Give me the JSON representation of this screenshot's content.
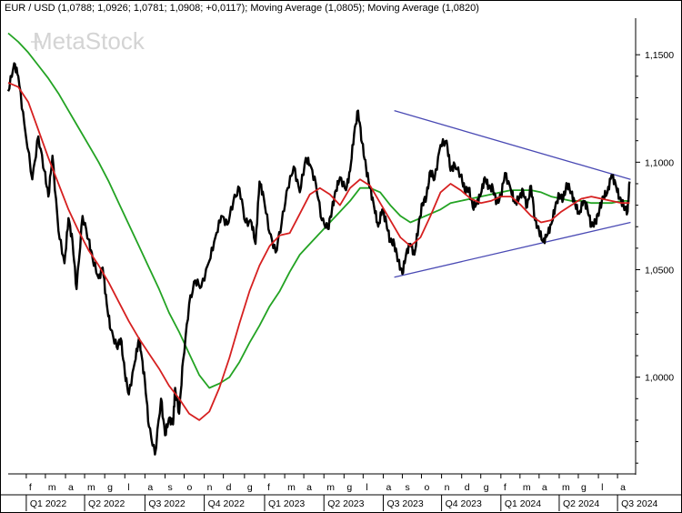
{
  "header": {
    "title": "EUR / USD (1,0788; 1,0926; 1,0781; 1,0908; +0,0117); Moving Average (1,0805); Moving Average (1,0820)"
  },
  "watermark": {
    "text": "MetaStock"
  },
  "colors": {
    "price": "#000000",
    "ma_fast": "#d62020",
    "ma_slow": "#23a323",
    "trendline": "#4a4ab4",
    "background": "#ffffff"
  },
  "chart_data": {
    "type": "line",
    "title": "EUR / USD (1,0788; 1,0926; 1,0781; 1,0908; +0,0117); Moving Average (1,0805); Moving Average (1,0820)",
    "ylim": [
      0.955,
      1.167
    ],
    "y_ticks": [
      "1,1500",
      "1,1000",
      "1,0500",
      "1,0000"
    ],
    "y_tick_values": [
      1.15,
      1.1,
      1.05,
      1.0
    ],
    "x_ticks": [
      {
        "label": "f",
        "t": 0.9
      },
      {
        "label": "m",
        "t": 1.85
      },
      {
        "label": "a",
        "t": 2.85
      },
      {
        "label": "m",
        "t": 3.8
      },
      {
        "label": "g",
        "t": 4.8
      },
      {
        "label": "l",
        "t": 5.8
      },
      {
        "label": "a",
        "t": 6.8
      },
      {
        "label": "s",
        "t": 7.8
      },
      {
        "label": "o",
        "t": 8.75
      },
      {
        "label": "n",
        "t": 9.75
      },
      {
        "label": "d",
        "t": 10.7
      },
      {
        "label": "g",
        "t": 11.75
      },
      {
        "label": "f",
        "t": 12.75
      },
      {
        "label": "m",
        "t": 13.75
      },
      {
        "label": "a",
        "t": 14.7
      },
      {
        "label": "m",
        "t": 15.7
      },
      {
        "label": "g",
        "t": 16.7
      },
      {
        "label": "l",
        "t": 17.65
      },
      {
        "label": "a",
        "t": 18.65
      },
      {
        "label": "s",
        "t": 19.6
      },
      {
        "label": "o",
        "t": 20.55
      },
      {
        "label": "n",
        "t": 21.55
      },
      {
        "label": "d",
        "t": 22.55
      },
      {
        "label": "g",
        "t": 23.5
      },
      {
        "label": "f",
        "t": 24.5
      },
      {
        "label": "m",
        "t": 25.45
      },
      {
        "label": "a",
        "t": 26.4
      },
      {
        "label": "m",
        "t": 27.4
      },
      {
        "label": "g",
        "t": 28.35
      },
      {
        "label": "l",
        "t": 29.35
      },
      {
        "label": "a",
        "t": 30.3
      }
    ],
    "quarters": [
      {
        "label": "Q1 2022",
        "t": 0.9
      },
      {
        "label": "Q2 2022",
        "t": 3.8
      },
      {
        "label": "Q3 2022",
        "t": 6.8
      },
      {
        "label": "Q4 2022",
        "t": 9.75
      },
      {
        "label": "Q1 2023",
        "t": 12.75
      },
      {
        "label": "Q2 2023",
        "t": 15.7
      },
      {
        "label": "Q3 2023",
        "t": 18.65
      },
      {
        "label": "Q4 2023",
        "t": 21.55
      },
      {
        "label": "Q1 2024",
        "t": 24.5
      },
      {
        "label": "Q2 2024",
        "t": 27.4
      },
      {
        "label": "Q3 2024",
        "t": 30.3
      }
    ],
    "x_range": [
      0,
      31.2
    ],
    "series": [
      {
        "key": "price",
        "x": [
          0,
          0.3,
          0.5,
          0.8,
          1.2,
          1.5,
          1.8,
          2.0,
          2.2,
          2.5,
          2.8,
          3.0,
          3.2,
          3.4,
          3.7,
          4.0,
          4.2,
          4.5,
          4.7,
          4.9,
          5.1,
          5.4,
          5.6,
          5.8,
          6.0,
          6.3,
          6.5,
          6.6,
          6.8,
          7.0,
          7.3,
          7.6,
          7.8,
          8.0,
          8.2,
          8.3,
          8.5,
          8.7,
          9.0,
          9.3,
          9.6,
          10.0,
          10.3,
          10.6,
          10.9,
          11.2,
          11.5,
          11.8,
          12.1,
          12.3,
          12.5,
          12.7,
          13.0,
          13.3,
          13.6,
          13.9,
          14.2,
          14.5,
          14.8,
          15.0,
          15.3,
          15.6,
          15.9,
          16.1,
          16.3,
          16.5,
          16.8,
          17.0,
          17.2,
          17.4,
          17.6,
          17.8,
          18.0,
          18.2,
          18.4,
          18.6,
          18.8,
          19.0,
          19.2,
          19.4,
          19.6,
          19.8,
          20.0,
          20.2,
          20.4,
          20.6,
          20.8,
          21.0,
          21.2,
          21.5,
          21.8,
          22.0,
          22.2,
          22.5,
          22.7,
          22.9,
          23.1,
          23.3,
          23.5,
          23.7,
          23.9,
          24.1,
          24.3,
          24.5,
          24.7,
          25.0,
          25.2,
          25.4,
          25.6,
          25.8,
          26.0,
          26.2,
          26.4,
          26.6,
          26.8,
          27.0,
          27.2,
          27.4,
          27.6,
          27.8,
          28.0,
          28.2,
          28.4,
          28.6,
          28.8,
          29.0,
          29.2,
          29.4,
          29.6,
          29.8,
          30.0,
          30.2,
          30.4,
          30.6,
          30.8,
          30.9
        ],
        "values": [
          1.133,
          1.146,
          1.14,
          1.118,
          1.092,
          1.112,
          1.096,
          1.084,
          1.103,
          1.068,
          1.053,
          1.074,
          1.063,
          1.041,
          1.075,
          1.064,
          1.055,
          1.046,
          1.051,
          1.034,
          1.022,
          1.014,
          1.018,
          1.002,
          0.992,
          1.007,
          1.018,
          1.012,
          0.998,
          0.977,
          0.964,
          0.99,
          0.973,
          0.981,
          0.978,
          0.995,
          0.983,
          1.008,
          1.034,
          1.045,
          1.042,
          1.054,
          1.065,
          1.075,
          1.071,
          1.082,
          1.088,
          1.072,
          1.072,
          1.062,
          1.091,
          1.084,
          1.067,
          1.058,
          1.072,
          1.088,
          1.098,
          1.086,
          1.102,
          1.099,
          1.09,
          1.073,
          1.069,
          1.078,
          1.087,
          1.093,
          1.087,
          1.096,
          1.113,
          1.124,
          1.109,
          1.097,
          1.088,
          1.079,
          1.07,
          1.078,
          1.072,
          1.063,
          1.062,
          1.054,
          1.048,
          1.058,
          1.062,
          1.057,
          1.07,
          1.081,
          1.084,
          1.096,
          1.092,
          1.108,
          1.11,
          1.096,
          1.099,
          1.094,
          1.087,
          1.088,
          1.079,
          1.081,
          1.085,
          1.093,
          1.088,
          1.088,
          1.081,
          1.084,
          1.095,
          1.087,
          1.081,
          1.083,
          1.087,
          1.079,
          1.089,
          1.073,
          1.068,
          1.063,
          1.066,
          1.071,
          1.079,
          1.085,
          1.083,
          1.09,
          1.086,
          1.08,
          1.076,
          1.082,
          1.079,
          1.07,
          1.072,
          1.078,
          1.084,
          1.086,
          1.094,
          1.09,
          1.083,
          1.08,
          1.077,
          1.091
        ]
      },
      {
        "key": "ma_fast",
        "x": [
          0,
          0.5,
          1.0,
          1.5,
          2.0,
          2.5,
          3.0,
          3.5,
          4.0,
          4.5,
          5.0,
          5.5,
          6.0,
          6.5,
          7.0,
          7.5,
          8.0,
          8.5,
          9.0,
          9.5,
          10.0,
          10.5,
          11.0,
          11.5,
          12.0,
          12.5,
          13.0,
          13.5,
          14.0,
          14.5,
          15.0,
          15.5,
          16.0,
          16.5,
          17.0,
          17.5,
          18.0,
          18.5,
          19.0,
          19.5,
          20.0,
          20.5,
          21.0,
          21.5,
          22.0,
          22.5,
          23.0,
          23.5,
          24.0,
          24.5,
          25.0,
          25.5,
          26.0,
          26.5,
          27.0,
          27.5,
          28.0,
          28.5,
          29.0,
          29.5,
          30.0,
          30.5,
          30.9
        ],
        "values": [
          1.137,
          1.135,
          1.128,
          1.115,
          1.102,
          1.09,
          1.078,
          1.068,
          1.059,
          1.052,
          1.044,
          1.035,
          1.026,
          1.018,
          1.011,
          1.004,
          0.996,
          0.99,
          0.983,
          0.98,
          0.984,
          0.995,
          1.009,
          1.025,
          1.04,
          1.052,
          1.061,
          1.066,
          1.067,
          1.076,
          1.085,
          1.088,
          1.085,
          1.08,
          1.088,
          1.092,
          1.089,
          1.081,
          1.073,
          1.065,
          1.061,
          1.065,
          1.075,
          1.086,
          1.09,
          1.087,
          1.083,
          1.081,
          1.082,
          1.084,
          1.084,
          1.08,
          1.075,
          1.072,
          1.073,
          1.077,
          1.08,
          1.083,
          1.084,
          1.083,
          1.082,
          1.081,
          1.081
        ]
      },
      {
        "key": "ma_slow",
        "x": [
          0,
          0.5,
          1.0,
          1.5,
          2.0,
          2.5,
          3.0,
          3.5,
          4.0,
          4.5,
          5.0,
          5.5,
          6.0,
          6.5,
          7.0,
          7.5,
          8.0,
          8.5,
          9.0,
          9.5,
          10.0,
          10.5,
          11.0,
          11.5,
          12.0,
          12.5,
          13.0,
          13.5,
          14.0,
          14.5,
          15.0,
          15.5,
          16.0,
          16.5,
          17.0,
          17.5,
          18.0,
          18.5,
          19.0,
          19.5,
          20.0,
          20.5,
          21.0,
          21.5,
          22.0,
          22.5,
          23.0,
          23.5,
          24.0,
          24.5,
          25.0,
          25.5,
          26.0,
          26.5,
          27.0,
          27.5,
          28.0,
          28.5,
          29.0,
          29.5,
          30.0,
          30.5,
          30.9
        ],
        "values": [
          1.16,
          1.156,
          1.151,
          1.145,
          1.139,
          1.132,
          1.124,
          1.116,
          1.108,
          1.1,
          1.091,
          1.081,
          1.071,
          1.061,
          1.051,
          1.041,
          1.03,
          1.021,
          1.011,
          1.001,
          0.995,
          0.997,
          1.0,
          1.007,
          1.016,
          1.024,
          1.033,
          1.04,
          1.049,
          1.057,
          1.062,
          1.067,
          1.072,
          1.077,
          1.082,
          1.088,
          1.088,
          1.086,
          1.08,
          1.075,
          1.072,
          1.074,
          1.076,
          1.078,
          1.081,
          1.082,
          1.083,
          1.084,
          1.085,
          1.086,
          1.087,
          1.087,
          1.087,
          1.086,
          1.084,
          1.083,
          1.082,
          1.082,
          1.081,
          1.081,
          1.081,
          1.082,
          1.082
        ]
      }
    ],
    "trendlines": [
      {
        "name": "upper",
        "x": [
          19.2,
          30.95
        ],
        "values": [
          1.124,
          1.092
        ]
      },
      {
        "name": "lower",
        "x": [
          19.2,
          30.95
        ],
        "values": [
          1.0465,
          1.072
        ]
      }
    ]
  }
}
